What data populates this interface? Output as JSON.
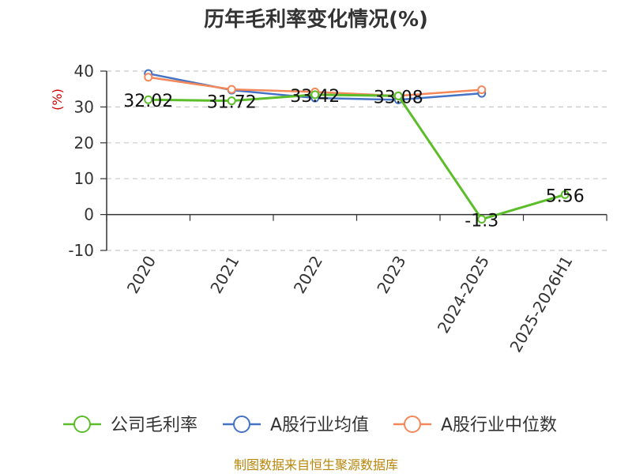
{
  "chart_data": {
    "type": "line",
    "title": "历年毛利率变化情况(%)",
    "ylabel": "(%)",
    "xlabel": "",
    "categories": [
      "2020",
      "2021",
      "2022",
      "2023",
      "2024-2025",
      "2025-2026H1"
    ],
    "ylim": [
      -10,
      40
    ],
    "yticks": [
      -10,
      0,
      10,
      20,
      30,
      40
    ],
    "grid": true,
    "legend_position": "bottom",
    "series": [
      {
        "name": "公司毛利率",
        "color": "#5cbd2a",
        "values": [
          32.02,
          31.72,
          33.42,
          33.08,
          -1.3,
          5.56
        ],
        "labels": [
          "32.02",
          "31.72",
          "33.42",
          "33.08",
          "-1.3",
          "5.56"
        ]
      },
      {
        "name": "A股行业均值",
        "color": "#4472c4",
        "values": [
          39.3,
          34.7,
          32.5,
          32.0,
          33.8,
          null
        ]
      },
      {
        "name": "A股行业中位数",
        "color": "#f4885a",
        "values": [
          38.3,
          34.9,
          34.2,
          33.1,
          34.8,
          null
        ]
      }
    ]
  },
  "source": "制图数据来自恒生聚源数据库"
}
